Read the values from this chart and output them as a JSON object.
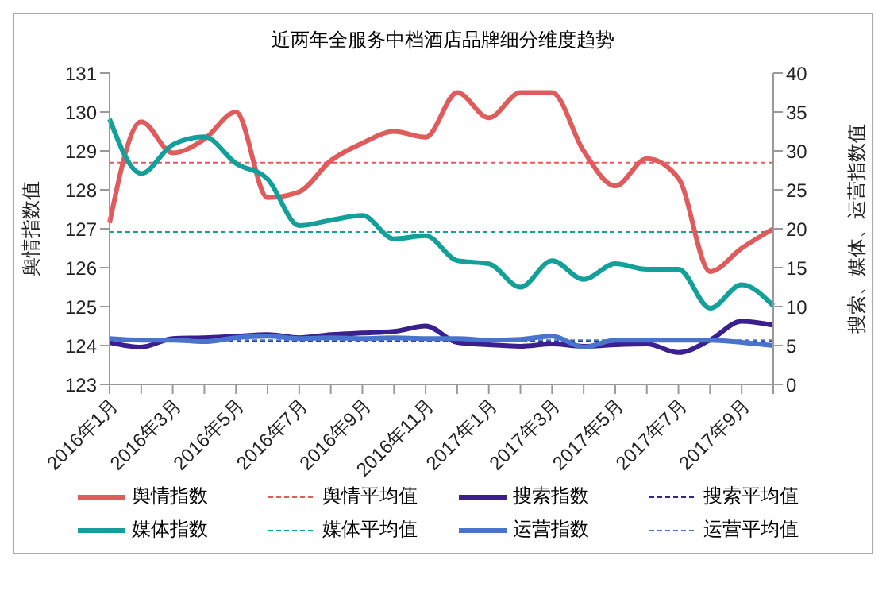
{
  "chart_data": {
    "type": "line",
    "title": "近两年全服务中档酒店品牌细分维度趋势",
    "ylabel": "舆情指数值",
    "y2label": "搜索、媒体、运营指数值",
    "categories": [
      "2016年1月",
      null,
      "2016年3月",
      null,
      "2016年5月",
      null,
      "2016年7月",
      null,
      "2016年9月",
      null,
      "2016年11月",
      null,
      "2017年1月",
      null,
      "2017年3月",
      null,
      "2017年5月",
      null,
      "2017年7月",
      null,
      "2017年9月",
      null
    ],
    "series": [
      {
        "name": "舆情指数",
        "color": "#e05c5c",
        "values": [
          127.15,
          129.75,
          128.95,
          129.3,
          130.0,
          127.8,
          127.95,
          128.75,
          129.2,
          129.5,
          129.35,
          130.5,
          129.85,
          130.5,
          130.5,
          129.0,
          128.1,
          128.8,
          128.3,
          125.9,
          126.5,
          127.0
        ]
      },
      {
        "name": "搜索指数",
        "color": "#3b1f8e",
        "axis": "y2",
        "values": [
          5.4,
          4.8,
          5.9,
          6.0,
          6.2,
          6.4,
          6.0,
          6.4,
          6.6,
          6.8,
          7.5,
          5.4,
          5.1,
          4.9,
          5.2,
          4.9,
          5.1,
          5.2,
          4.1,
          5.7,
          8.1,
          7.6
        ]
      },
      {
        "name": "媒体指数",
        "color": "#14a09a",
        "axis": "y2",
        "values": [
          34.1,
          27.1,
          30.8,
          31.8,
          28.4,
          26.4,
          20.4,
          21.1,
          21.7,
          18.7,
          19.1,
          15.9,
          15.5,
          12.5,
          15.9,
          13.5,
          15.5,
          14.8,
          14.8,
          9.8,
          12.8,
          10.1
        ]
      },
      {
        "name": "运营指数",
        "color": "#4a74cc",
        "axis": "y2",
        "values": [
          5.9,
          5.7,
          5.7,
          5.5,
          6.0,
          6.2,
          5.9,
          6.0,
          5.9,
          6.0,
          5.9,
          5.9,
          5.7,
          5.8,
          6.2,
          4.8,
          5.7,
          5.7,
          5.7,
          5.7,
          5.4,
          5.0
        ]
      }
    ],
    "ref_lines": [
      {
        "axis": "y",
        "value": 128.7,
        "label": "舆情平均值",
        "color": "#e05c5c",
        "line_style": "dashed"
      },
      {
        "axis": "y2",
        "value": 5.6,
        "label": "搜索平均值",
        "color": "#3b1f8e",
        "line_style": "dashed"
      },
      {
        "axis": "y2",
        "value": 19.6,
        "label": "媒体平均值",
        "color": "#14a09a",
        "line_style": "dashed"
      },
      {
        "axis": "y2",
        "value": 5.7,
        "label": "运营平均值",
        "color": "#4a74cc",
        "line_style": "dashed"
      }
    ],
    "ylim": [
      123,
      131
    ],
    "yticks": [
      123,
      124,
      125,
      126,
      127,
      128,
      129,
      130,
      131
    ],
    "y2lim": [
      0,
      40
    ],
    "y2ticks": [
      0,
      5,
      10,
      15,
      20,
      25,
      30,
      35,
      40
    ],
    "grid": false,
    "legend": "bottom",
    "marker": "none",
    "line_style": "solid"
  }
}
